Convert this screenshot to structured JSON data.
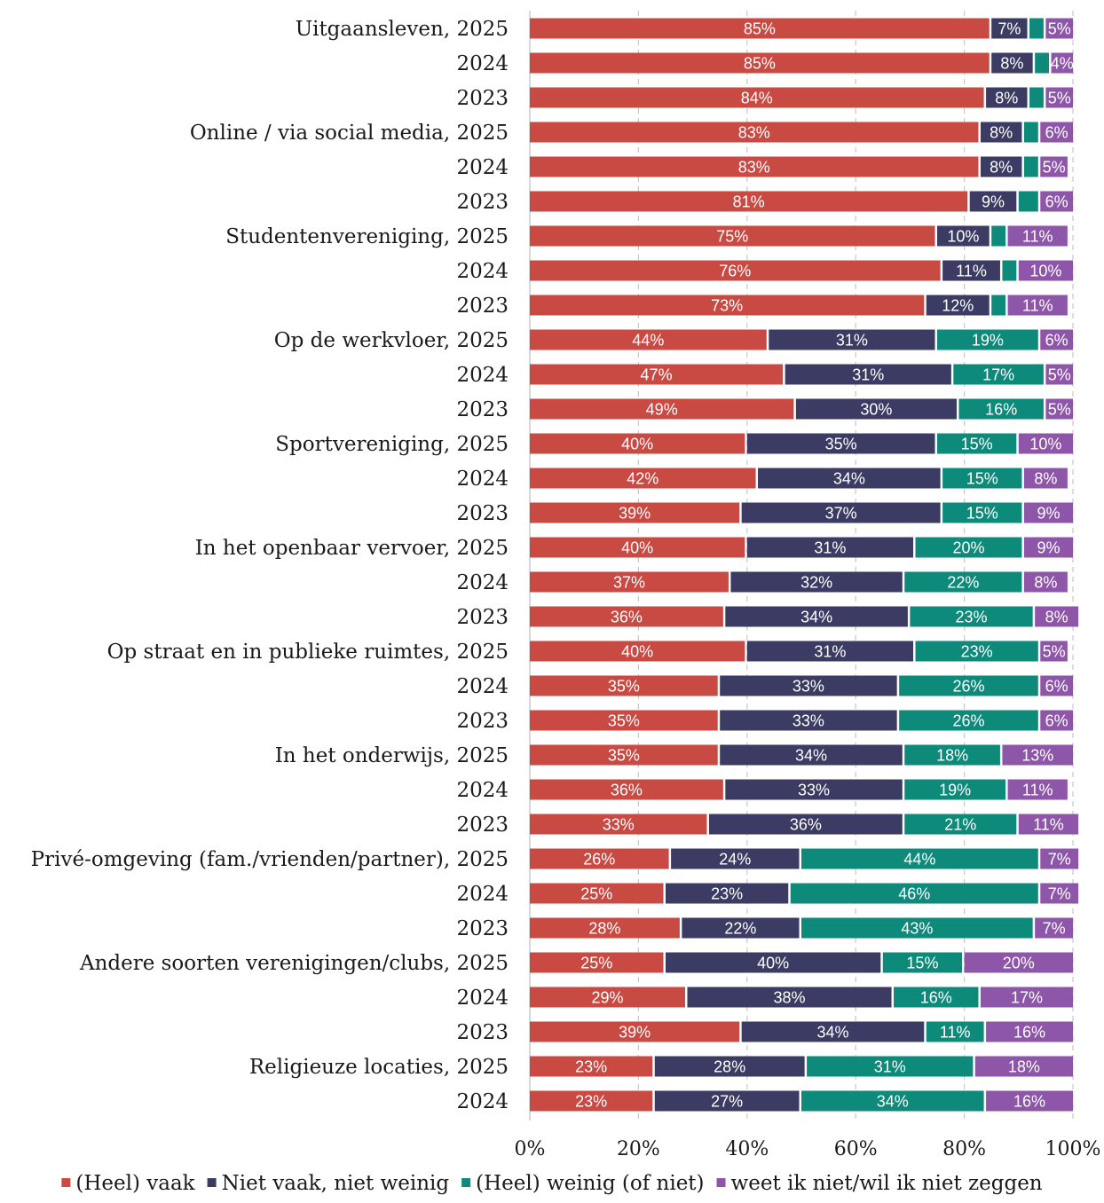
{
  "chart_data": {
    "type": "bar",
    "orientation": "horizontal",
    "stacked": true,
    "categories": [
      "Uitgaansleven, 2025",
      "2024",
      "2023",
      "Online / via social media, 2025",
      "2024",
      "2023",
      "Studentenvereniging, 2025",
      "2024",
      "2023",
      "Op de werkvloer, 2025",
      "2024",
      "2023",
      "Sportvereniging, 2025",
      "2024",
      "2023",
      "In het openbaar vervoer, 2025",
      "2024",
      "2023",
      "Op straat en in publieke ruimtes, 2025",
      "2024",
      "2023",
      "In het onderwijs, 2025",
      "2024",
      "2023",
      "Privé-omgeving (fam./vrienden/partner), 2025",
      "2024",
      "2023",
      "Andere soorten verenigingen/clubs, 2025",
      "2024",
      "2023",
      "Religieuze locaties, 2025",
      "2024"
    ],
    "series": [
      {
        "name": "(Heel) vaak",
        "color": "#c94a43",
        "values": [
          85,
          85,
          84,
          83,
          83,
          81,
          75,
          76,
          73,
          44,
          47,
          49,
          40,
          42,
          39,
          40,
          37,
          36,
          40,
          35,
          35,
          35,
          36,
          33,
          26,
          25,
          28,
          25,
          29,
          39,
          23,
          23
        ],
        "labels": [
          "85%",
          "85%",
          "84%",
          "83%",
          "83%",
          "81%",
          "75%",
          "76%",
          "73%",
          "44%",
          "47%",
          "49%",
          "40%",
          "42%",
          "39%",
          "40%",
          "37%",
          "36%",
          "40%",
          "35%",
          "35%",
          "35%",
          "36%",
          "33%",
          "26%",
          "25%",
          "28%",
          "25%",
          "29%",
          "39%",
          "23%",
          "23%"
        ]
      },
      {
        "name": "Niet vaak, niet weinig",
        "color": "#3b3b63",
        "values": [
          7,
          8,
          8,
          8,
          8,
          9,
          10,
          11,
          12,
          31,
          31,
          30,
          35,
          34,
          37,
          31,
          32,
          34,
          31,
          33,
          33,
          34,
          33,
          36,
          24,
          23,
          22,
          40,
          38,
          34,
          28,
          27
        ],
        "labels": [
          "7%",
          "8%",
          "8%",
          "8%",
          "8%",
          "9%",
          "10%",
          "11%",
          "12%",
          "31%",
          "31%",
          "30%",
          "35%",
          "34%",
          "37%",
          "31%",
          "32%",
          "34%",
          "31%",
          "33%",
          "33%",
          "34%",
          "33%",
          "36%",
          "24%",
          "23%",
          "22%",
          "40%",
          "38%",
          "34%",
          "28%",
          "27%"
        ]
      },
      {
        "name": "(Heel) weinig (of niet)",
        "color": "#0e8a7b",
        "values": [
          3,
          3,
          3,
          3,
          3,
          4,
          3,
          3,
          3,
          19,
          17,
          16,
          15,
          15,
          15,
          20,
          22,
          23,
          23,
          26,
          26,
          18,
          19,
          21,
          44,
          46,
          43,
          15,
          16,
          11,
          31,
          34
        ],
        "labels": [
          "",
          "",
          "",
          "",
          "",
          "",
          "",
          "",
          "",
          "19%",
          "17%",
          "16%",
          "15%",
          "15%",
          "15%",
          "20%",
          "22%",
          "23%",
          "23%",
          "26%",
          "26%",
          "18%",
          "19%",
          "21%",
          "44%",
          "46%",
          "43%",
          "15%",
          "16%",
          "11%",
          "31%",
          "34%"
        ]
      },
      {
        "name": "weet ik niet/wil ik niet zeggen",
        "color": "#8e56a8",
        "values": [
          5,
          4,
          5,
          6,
          5,
          6,
          11,
          10,
          11,
          6,
          5,
          5,
          10,
          8,
          9,
          9,
          8,
          8,
          5,
          6,
          6,
          13,
          11,
          11,
          7,
          7,
          7,
          20,
          17,
          16,
          18,
          16
        ],
        "labels": [
          "5%",
          "4%",
          "5%",
          "6%",
          "5%",
          "6%",
          "11%",
          "10%",
          "11%",
          "6%",
          "5%",
          "5%",
          "10%",
          "8%",
          "9%",
          "9%",
          "8%",
          "8%",
          "5%",
          "6%",
          "6%",
          "13%",
          "11%",
          "11%",
          "7%",
          "7%",
          "7%",
          "20%",
          "17%",
          "16%",
          "18%",
          "16%"
        ]
      }
    ],
    "xlim": [
      0,
      100
    ],
    "xticks": [
      0,
      20,
      40,
      60,
      80,
      100
    ],
    "xtick_labels": [
      "0%",
      "20%",
      "40%",
      "60%",
      "80%",
      "100%"
    ],
    "grid": "vertical dashed",
    "legend_position": "bottom",
    "title": "",
    "xlabel": "",
    "ylabel": ""
  }
}
